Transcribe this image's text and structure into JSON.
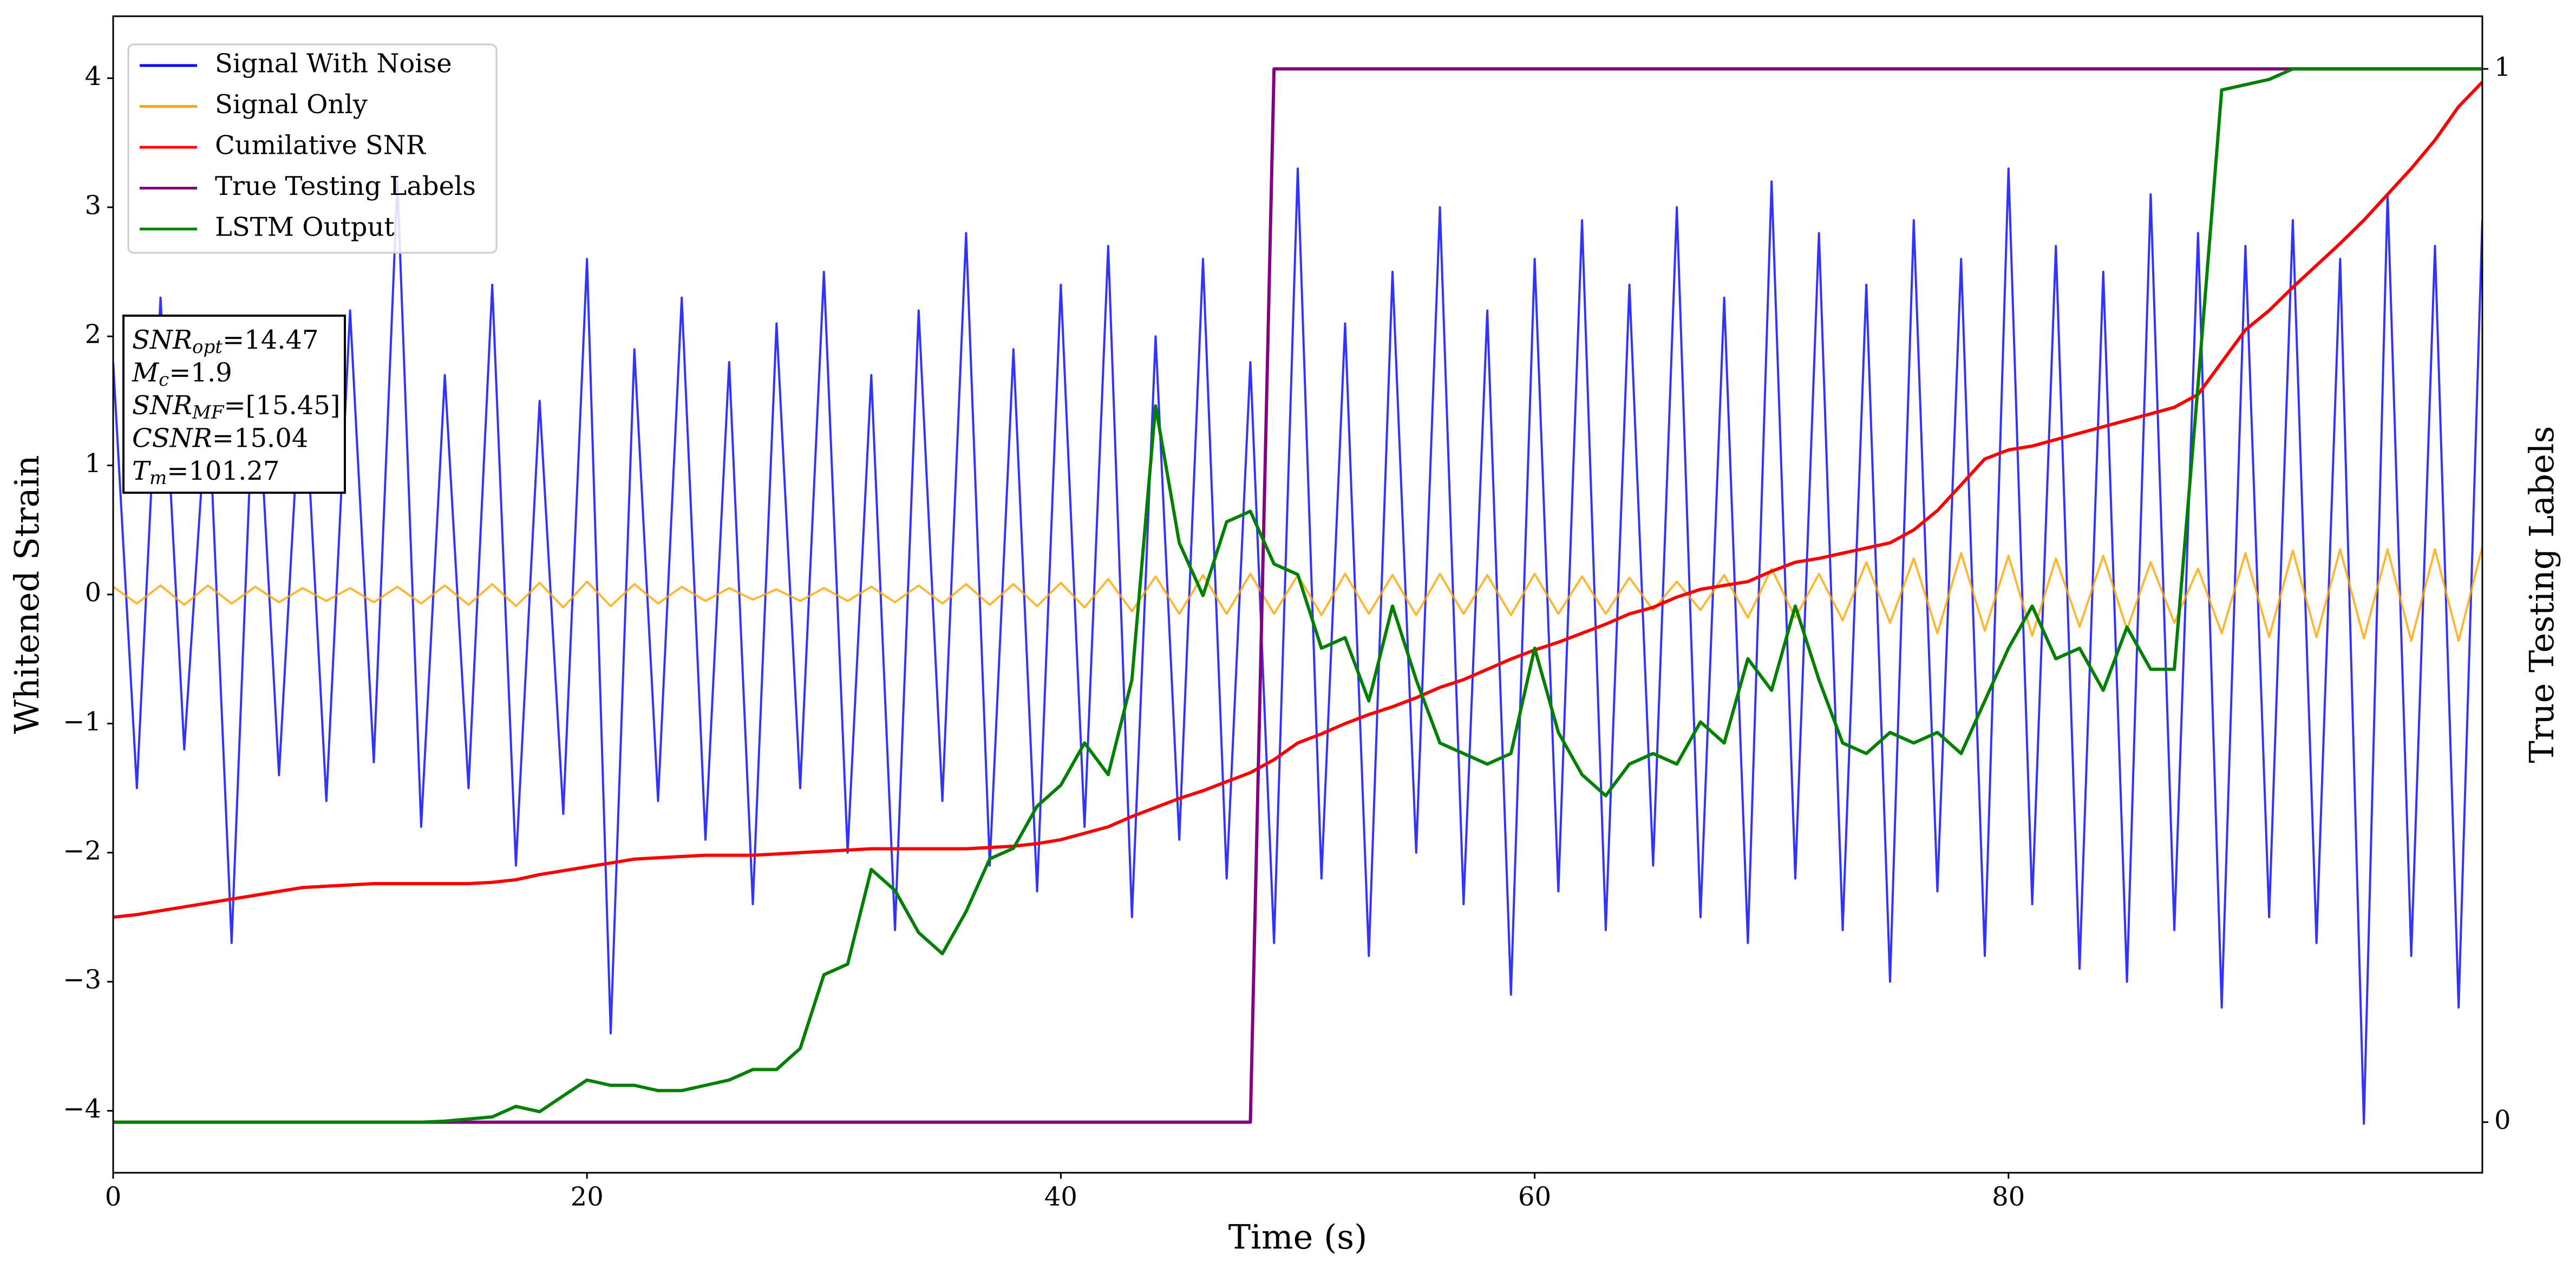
{
  "chart_data": {
    "type": "line",
    "xlabel": "Time (s)",
    "ylabel": "Whitened Strain",
    "y2label": "True Testing Labels",
    "xlim": [
      0,
      100
    ],
    "ylim": [
      -4.48,
      4.48
    ],
    "y2lim": [
      -0.048,
      1.05
    ],
    "xticks": [
      0,
      20,
      40,
      60,
      80
    ],
    "yticks": [
      {
        "value": -4,
        "label": "−4"
      },
      {
        "value": -3,
        "label": "−3"
      },
      {
        "value": -2,
        "label": "−2"
      },
      {
        "value": -1,
        "label": "−1"
      },
      0,
      1,
      2,
      3,
      4
    ],
    "y2ticks": [
      0,
      1
    ],
    "legend": "upper left",
    "x": [
      0,
      1,
      2,
      3,
      4,
      5,
      6,
      7,
      8,
      9,
      10,
      11,
      12,
      13,
      14,
      15,
      16,
      17,
      18,
      19,
      20,
      21,
      22,
      23,
      24,
      25,
      26,
      27,
      28,
      29,
      30,
      31,
      32,
      33,
      34,
      35,
      36,
      37,
      38,
      39,
      40,
      41,
      42,
      43,
      44,
      45,
      46,
      47,
      48,
      49,
      50,
      51,
      52,
      53,
      54,
      55,
      56,
      57,
      58,
      59,
      60,
      61,
      62,
      63,
      64,
      65,
      66,
      67,
      68,
      69,
      70,
      71,
      72,
      73,
      74,
      75,
      76,
      77,
      78,
      79,
      80,
      81,
      82,
      83,
      84,
      85,
      86,
      87,
      88,
      89,
      90,
      91,
      92,
      93,
      94,
      95,
      96,
      97,
      98,
      99,
      100
    ],
    "series": [
      {
        "name": "Signal With Noise",
        "color": "#0000FF",
        "values": [
          1.8,
          -1.5,
          2.3,
          -1.2,
          1.6,
          -2.7,
          2.0,
          -1.4,
          1.9,
          -1.6,
          2.2,
          -1.3,
          3.2,
          -1.8,
          1.7,
          -1.5,
          2.4,
          -2.1,
          1.5,
          -1.7,
          2.6,
          -3.4,
          1.9,
          -1.6,
          2.3,
          -1.9,
          1.8,
          -2.4,
          2.1,
          -1.5,
          2.5,
          -2.0,
          1.7,
          -2.6,
          2.2,
          -1.6,
          2.8,
          -2.1,
          1.9,
          -2.3,
          2.4,
          -1.8,
          2.7,
          -2.5,
          2.0,
          -1.9,
          2.6,
          -2.2,
          1.8,
          -2.7,
          3.3,
          -2.2,
          2.1,
          -2.8,
          2.5,
          -2.0,
          3.0,
          -2.4,
          2.2,
          -3.1,
          2.6,
          -2.3,
          2.9,
          -2.6,
          2.4,
          -2.1,
          3.0,
          -2.5,
          2.3,
          -2.7,
          3.2,
          -2.2,
          2.8,
          -2.6,
          2.4,
          -3.0,
          2.9,
          -2.3,
          2.6,
          -2.8,
          3.3,
          -2.4,
          2.7,
          -2.9,
          2.5,
          -3.0,
          3.1,
          -2.6,
          2.8,
          -3.2,
          2.7,
          -2.5,
          2.9,
          -2.7,
          2.6,
          -4.1,
          3.1,
          -2.8,
          2.7,
          -3.2,
          2.9
        ]
      },
      {
        "name": "Signal Only",
        "color": "#FFA500",
        "values": [
          0.06,
          -0.07,
          0.07,
          -0.08,
          0.07,
          -0.07,
          0.06,
          -0.06,
          0.05,
          -0.05,
          0.05,
          -0.06,
          0.06,
          -0.07,
          0.07,
          -0.08,
          0.08,
          -0.09,
          0.09,
          -0.1,
          0.1,
          -0.09,
          0.08,
          -0.07,
          0.06,
          -0.05,
          0.05,
          -0.04,
          0.04,
          -0.05,
          0.05,
          -0.05,
          0.06,
          -0.06,
          0.07,
          -0.07,
          0.08,
          -0.08,
          0.08,
          -0.09,
          0.09,
          -0.1,
          0.12,
          -0.13,
          0.14,
          -0.15,
          0.15,
          -0.15,
          0.16,
          -0.15,
          0.15,
          -0.16,
          0.16,
          -0.15,
          0.15,
          -0.16,
          0.16,
          -0.15,
          0.15,
          -0.16,
          0.16,
          -0.15,
          0.14,
          -0.15,
          0.13,
          -0.12,
          0.1,
          -0.12,
          0.15,
          -0.18,
          0.2,
          -0.18,
          0.16,
          -0.2,
          0.25,
          -0.22,
          0.28,
          -0.3,
          0.32,
          -0.28,
          0.3,
          -0.32,
          0.28,
          -0.25,
          0.3,
          -0.27,
          0.25,
          -0.22,
          0.2,
          -0.3,
          0.32,
          -0.33,
          0.34,
          -0.33,
          0.35,
          -0.34,
          0.35,
          -0.36,
          0.35,
          -0.36,
          0.37
        ]
      },
      {
        "name": "Cumilative SNR",
        "color": "#FF0000",
        "values": [
          -2.5,
          -2.48,
          -2.45,
          -2.42,
          -2.39,
          -2.36,
          -2.33,
          -2.3,
          -2.27,
          -2.26,
          -2.25,
          -2.24,
          -2.24,
          -2.24,
          -2.24,
          -2.24,
          -2.23,
          -2.21,
          -2.17,
          -2.14,
          -2.11,
          -2.08,
          -2.05,
          -2.04,
          -2.03,
          -2.02,
          -2.02,
          -2.02,
          -2.01,
          -2.0,
          -1.99,
          -1.98,
          -1.97,
          -1.97,
          -1.97,
          -1.97,
          -1.97,
          -1.96,
          -1.95,
          -1.93,
          -1.9,
          -1.85,
          -1.8,
          -1.72,
          -1.65,
          -1.58,
          -1.52,
          -1.45,
          -1.38,
          -1.28,
          -1.15,
          -1.08,
          -1.0,
          -0.93,
          -0.87,
          -0.8,
          -0.72,
          -0.66,
          -0.58,
          -0.5,
          -0.43,
          -0.37,
          -0.3,
          -0.23,
          -0.15,
          -0.1,
          -0.02,
          0.04,
          0.07,
          0.1,
          0.18,
          0.25,
          0.28,
          0.32,
          0.36,
          0.4,
          0.5,
          0.65,
          0.85,
          1.05,
          1.12,
          1.15,
          1.2,
          1.25,
          1.3,
          1.35,
          1.4,
          1.45,
          1.55,
          1.8,
          2.05,
          2.2,
          2.38,
          2.55,
          2.72,
          2.9,
          3.1,
          3.3,
          3.52,
          3.78,
          3.97
        ]
      },
      {
        "name": "True Testing Labels",
        "color": "#800080",
        "axis": "y2",
        "values": [
          0,
          0,
          0,
          0,
          0,
          0,
          0,
          0,
          0,
          0,
          0,
          0,
          0,
          0,
          0,
          0,
          0,
          0,
          0,
          0,
          0,
          0,
          0,
          0,
          0,
          0,
          0,
          0,
          0,
          0,
          0,
          0,
          0,
          0,
          0,
          0,
          0,
          0,
          0,
          0,
          0,
          0,
          0,
          0,
          0,
          0,
          0,
          0,
          0,
          1,
          1,
          1,
          1,
          1,
          1,
          1,
          1,
          1,
          1,
          1,
          1,
          1,
          1,
          1,
          1,
          1,
          1,
          1,
          1,
          1,
          1,
          1,
          1,
          1,
          1,
          1,
          1,
          1,
          1,
          1,
          1,
          1,
          1,
          1,
          1,
          1,
          1,
          1,
          1,
          1,
          1,
          1,
          1,
          1,
          1,
          1,
          1,
          1,
          1,
          1,
          1
        ]
      },
      {
        "name": "LSTM Output",
        "color": "#008000",
        "axis": "y2",
        "values": [
          0,
          0,
          0,
          0,
          0,
          0,
          0,
          0,
          0,
          0,
          0,
          0,
          0,
          0,
          0.001,
          0.003,
          0.005,
          0.015,
          0.01,
          0.025,
          0.04,
          0.035,
          0.035,
          0.03,
          0.03,
          0.035,
          0.04,
          0.05,
          0.05,
          0.07,
          0.14,
          0.15,
          0.24,
          0.22,
          0.18,
          0.16,
          0.2,
          0.25,
          0.26,
          0.3,
          0.32,
          0.36,
          0.33,
          0.42,
          0.68,
          0.55,
          0.5,
          0.57,
          0.58,
          0.53,
          0.52,
          0.45,
          0.46,
          0.4,
          0.49,
          0.42,
          0.36,
          0.35,
          0.34,
          0.35,
          0.45,
          0.37,
          0.33,
          0.31,
          0.34,
          0.35,
          0.34,
          0.38,
          0.36,
          0.44,
          0.41,
          0.49,
          0.42,
          0.36,
          0.35,
          0.37,
          0.36,
          0.37,
          0.35,
          0.4,
          0.45,
          0.49,
          0.44,
          0.45,
          0.41,
          0.47,
          0.43,
          0.43,
          0.7,
          0.98,
          0.985,
          0.99,
          1,
          1,
          1,
          1,
          1,
          1,
          1,
          1,
          1
        ]
      }
    ],
    "annotations": [
      {
        "symbol": "SNR",
        "sub": "opt",
        "text": "=14.47"
      },
      {
        "symbol": "M",
        "sub": "c",
        "text": "=1.9"
      },
      {
        "symbol": "SNR",
        "sub": "MF",
        "text": "=[15.45]"
      },
      {
        "symbol": "CSNR",
        "text": "=15.04"
      },
      {
        "symbol": "T",
        "sub": "m",
        "text": "=101.27"
      }
    ]
  }
}
